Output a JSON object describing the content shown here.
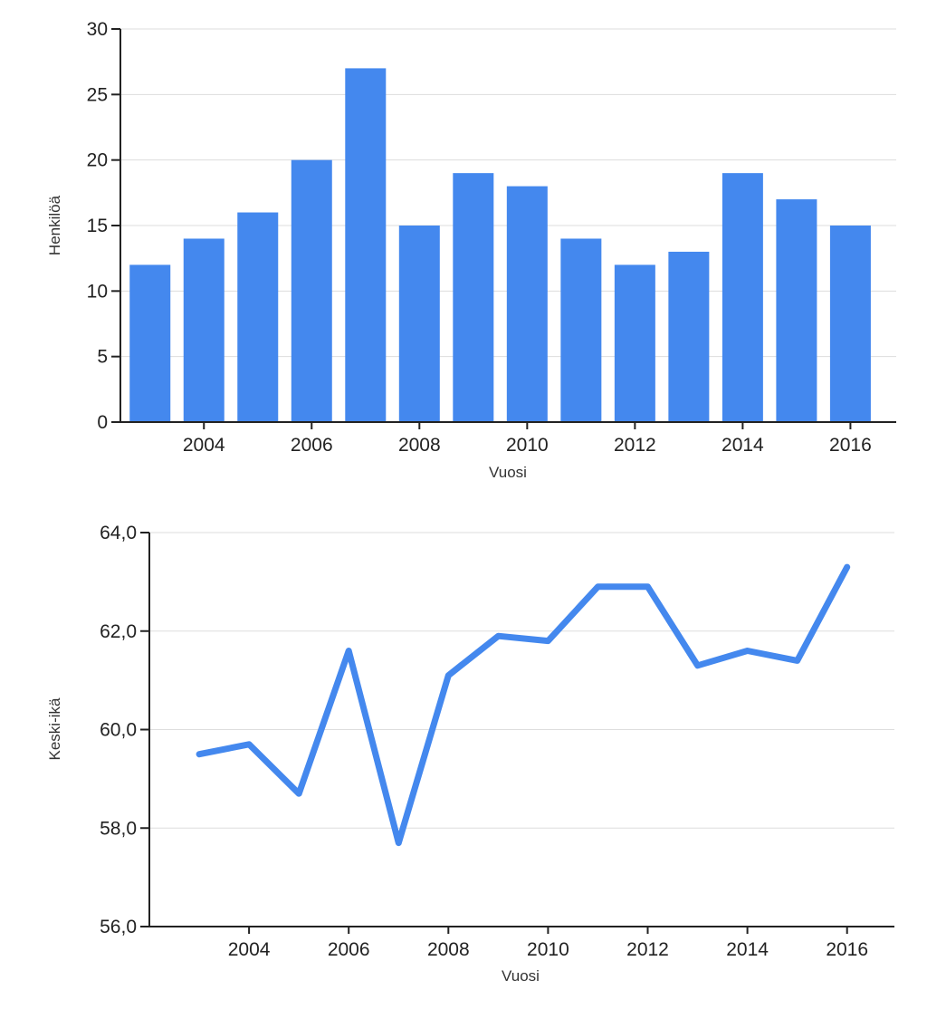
{
  "chart_data": [
    {
      "type": "bar",
      "title": "",
      "xlabel": "Vuosi",
      "ylabel": "Henkilöä",
      "x": [
        2003,
        2004,
        2005,
        2006,
        2007,
        2008,
        2009,
        2010,
        2011,
        2012,
        2013,
        2014,
        2015,
        2016
      ],
      "values": [
        12,
        14,
        16,
        20,
        27,
        15,
        19,
        18,
        14,
        12,
        13,
        19,
        17,
        15
      ],
      "ylim": [
        0,
        30
      ],
      "yticks": [
        0,
        5,
        10,
        15,
        20,
        25,
        30
      ],
      "ytick_labels": [
        "0",
        "5",
        "10",
        "15",
        "20",
        "25",
        "30"
      ],
      "xticks": [
        2004,
        2006,
        2008,
        2010,
        2012,
        2014,
        2016
      ],
      "xtick_labels": [
        "2004",
        "2006",
        "2008",
        "2010",
        "2012",
        "2014",
        "2016"
      ],
      "grid": true,
      "color": "#4488ee"
    },
    {
      "type": "line",
      "title": "",
      "xlabel": "Vuosi",
      "ylabel": "Keski-ikä",
      "x": [
        2003,
        2004,
        2005,
        2006,
        2007,
        2008,
        2009,
        2010,
        2011,
        2012,
        2013,
        2014,
        2015,
        2016
      ],
      "values": [
        59.5,
        59.7,
        58.7,
        61.6,
        57.7,
        61.1,
        61.9,
        61.8,
        62.9,
        62.9,
        61.3,
        61.6,
        61.4,
        63.3
      ],
      "ylim": [
        56,
        64
      ],
      "yticks": [
        56,
        58,
        60,
        62,
        64
      ],
      "ytick_labels": [
        "56,0",
        "58,0",
        "60,0",
        "62,0",
        "64,0"
      ],
      "xticks": [
        2004,
        2006,
        2008,
        2010,
        2012,
        2014,
        2016
      ],
      "xtick_labels": [
        "2004",
        "2006",
        "2008",
        "2010",
        "2012",
        "2014",
        "2016"
      ],
      "grid": true,
      "color": "#4488ee"
    }
  ]
}
